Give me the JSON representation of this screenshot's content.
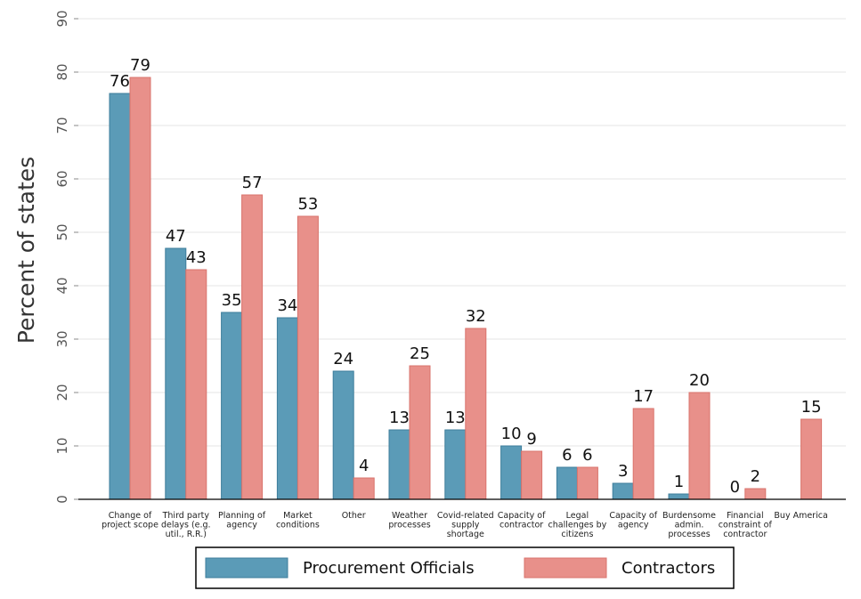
{
  "chart_data": {
    "type": "bar",
    "title": "",
    "xlabel": "",
    "ylabel": "Percent of states",
    "ylim": [
      0,
      90
    ],
    "yticks": [
      0,
      10,
      20,
      30,
      40,
      50,
      60,
      70,
      80,
      90
    ],
    "grid": true,
    "legend_position": "bottom",
    "categories": [
      [
        "Change of",
        "project scope"
      ],
      [
        "Third party",
        "delays (e.g.",
        "util., R.R.)"
      ],
      [
        "Planning of",
        "agency"
      ],
      [
        "Market",
        "conditions"
      ],
      [
        "Other"
      ],
      [
        "Weather",
        "processes"
      ],
      [
        "Covid-related",
        "supply",
        "shortage"
      ],
      [
        "Capacity of",
        "contractor"
      ],
      [
        "Legal",
        "challenges by",
        "citizens"
      ],
      [
        "Capacity of",
        "agency"
      ],
      [
        "Burdensome",
        "admin.",
        "processes"
      ],
      [
        "Financial",
        "constraint of",
        "contractor"
      ],
      [
        "Buy America"
      ]
    ],
    "series": [
      {
        "name": "Procurement Officials",
        "color": "#5b9bb7",
        "stroke": "#3e7e9b",
        "values": [
          76,
          47,
          35,
          34,
          24,
          13,
          13,
          10,
          6,
          3,
          1,
          0,
          null
        ],
        "labels": [
          "76",
          "47",
          "35",
          "34",
          "24",
          "13",
          "13",
          "10",
          "6",
          "3",
          "1",
          "0",
          ""
        ]
      },
      {
        "name": "Contractors",
        "color": "#e8908a",
        "stroke": "#d9736c",
        "values": [
          79,
          43,
          57,
          53,
          4,
          25,
          32,
          9,
          6,
          17,
          20,
          2,
          15
        ],
        "labels": [
          "79",
          "43",
          "57",
          "53",
          "4",
          "25",
          "32",
          "9",
          "6",
          "17",
          "20",
          "2",
          "15"
        ]
      }
    ]
  }
}
